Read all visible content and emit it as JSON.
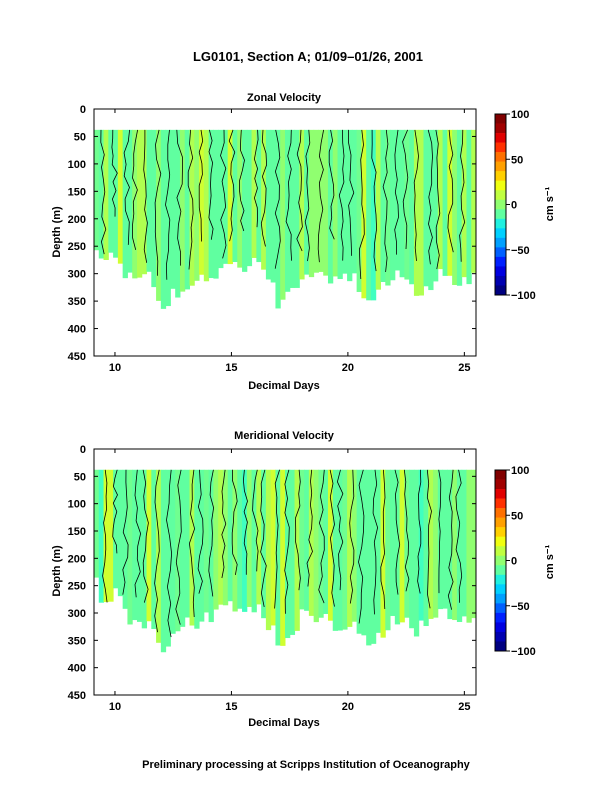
{
  "title": "LG0101, Section A; 01/09–01/26, 2001",
  "footer": "Preliminary processing at Scripps Institution of Oceanography",
  "colorbar": {
    "ticks": [
      "100",
      "50",
      "0",
      "−50",
      "−100"
    ],
    "unit": "cm s⁻¹",
    "colors": [
      "#000080",
      "#0000b0",
      "#0000e0",
      "#0020ff",
      "#0060ff",
      "#00a0ff",
      "#00d0ff",
      "#20f0e0",
      "#60ffa0",
      "#90ff70",
      "#c0ff40",
      "#f0ff10",
      "#ffd000",
      "#ffa000",
      "#ff7000",
      "#ff3000",
      "#e00000",
      "#a00000",
      "#800000"
    ]
  },
  "chart_data": [
    {
      "type": "heatmap",
      "title": "Zonal Velocity",
      "xlabel": "Decimal Days",
      "ylabel": "Depth (m)",
      "xlim": [
        9.1,
        25.5
      ],
      "ylim": [
        0,
        450
      ],
      "y_inverted": true,
      "x_ticks": [
        "10",
        "15",
        "20",
        "25"
      ],
      "y_ticks": [
        "0",
        "50",
        "100",
        "150",
        "200",
        "250",
        "300",
        "350",
        "400",
        "450"
      ],
      "colorbar_range": [
        -100,
        100
      ],
      "top_depth": 38,
      "bottom_depth_x": [
        9.1,
        9.5,
        10.0,
        10.5,
        11.0,
        11.5,
        12.0,
        12.5,
        13.0,
        13.5,
        14.0,
        14.5,
        15.0,
        15.5,
        16.0,
        16.5,
        17.0,
        17.5,
        18.0,
        18.5,
        19.0,
        19.5,
        20.0,
        20.5,
        21.0,
        21.5,
        22.0,
        22.5,
        23.0,
        23.5,
        24.0,
        24.5,
        25.0,
        25.5
      ],
      "bottom_depth": [
        240,
        290,
        260,
        300,
        315,
        310,
        360,
        340,
        320,
        310,
        305,
        300,
        280,
        285,
        275,
        300,
        350,
        330,
        300,
        295,
        300,
        310,
        305,
        320,
        360,
        330,
        300,
        320,
        340,
        320,
        300,
        310,
        315,
        310
      ],
      "dominant_value_range": [
        -10,
        20
      ],
      "contour_interval": 10
    },
    {
      "type": "heatmap",
      "title": "Meridional Velocity",
      "xlabel": "Decimal Days",
      "ylabel": "Depth (m)",
      "xlim": [
        9.1,
        25.5
      ],
      "ylim": [
        0,
        450
      ],
      "y_inverted": true,
      "x_ticks": [
        "10",
        "15",
        "20",
        "25"
      ],
      "y_ticks": [
        "0",
        "50",
        "100",
        "150",
        "200",
        "250",
        "300",
        "350",
        "400",
        "450"
      ],
      "colorbar_range": [
        -100,
        100
      ],
      "top_depth": 38,
      "bottom_depth_x": [
        9.1,
        9.5,
        10.0,
        10.5,
        11.0,
        11.5,
        12.0,
        12.5,
        13.0,
        13.5,
        14.0,
        14.5,
        15.0,
        15.5,
        16.0,
        16.5,
        17.0,
        17.5,
        18.0,
        18.5,
        19.0,
        19.5,
        20.0,
        20.5,
        21.0,
        21.5,
        22.0,
        22.5,
        23.0,
        23.5,
        24.0,
        24.5,
        25.0,
        25.5
      ],
      "bottom_depth": [
        220,
        295,
        260,
        305,
        320,
        315,
        370,
        350,
        325,
        315,
        310,
        300,
        290,
        295,
        285,
        310,
        355,
        340,
        305,
        300,
        310,
        320,
        315,
        330,
        370,
        335,
        310,
        320,
        330,
        315,
        300,
        305,
        320,
        325
      ],
      "dominant_value_range": [
        -10,
        20
      ],
      "contour_interval": 10
    }
  ]
}
